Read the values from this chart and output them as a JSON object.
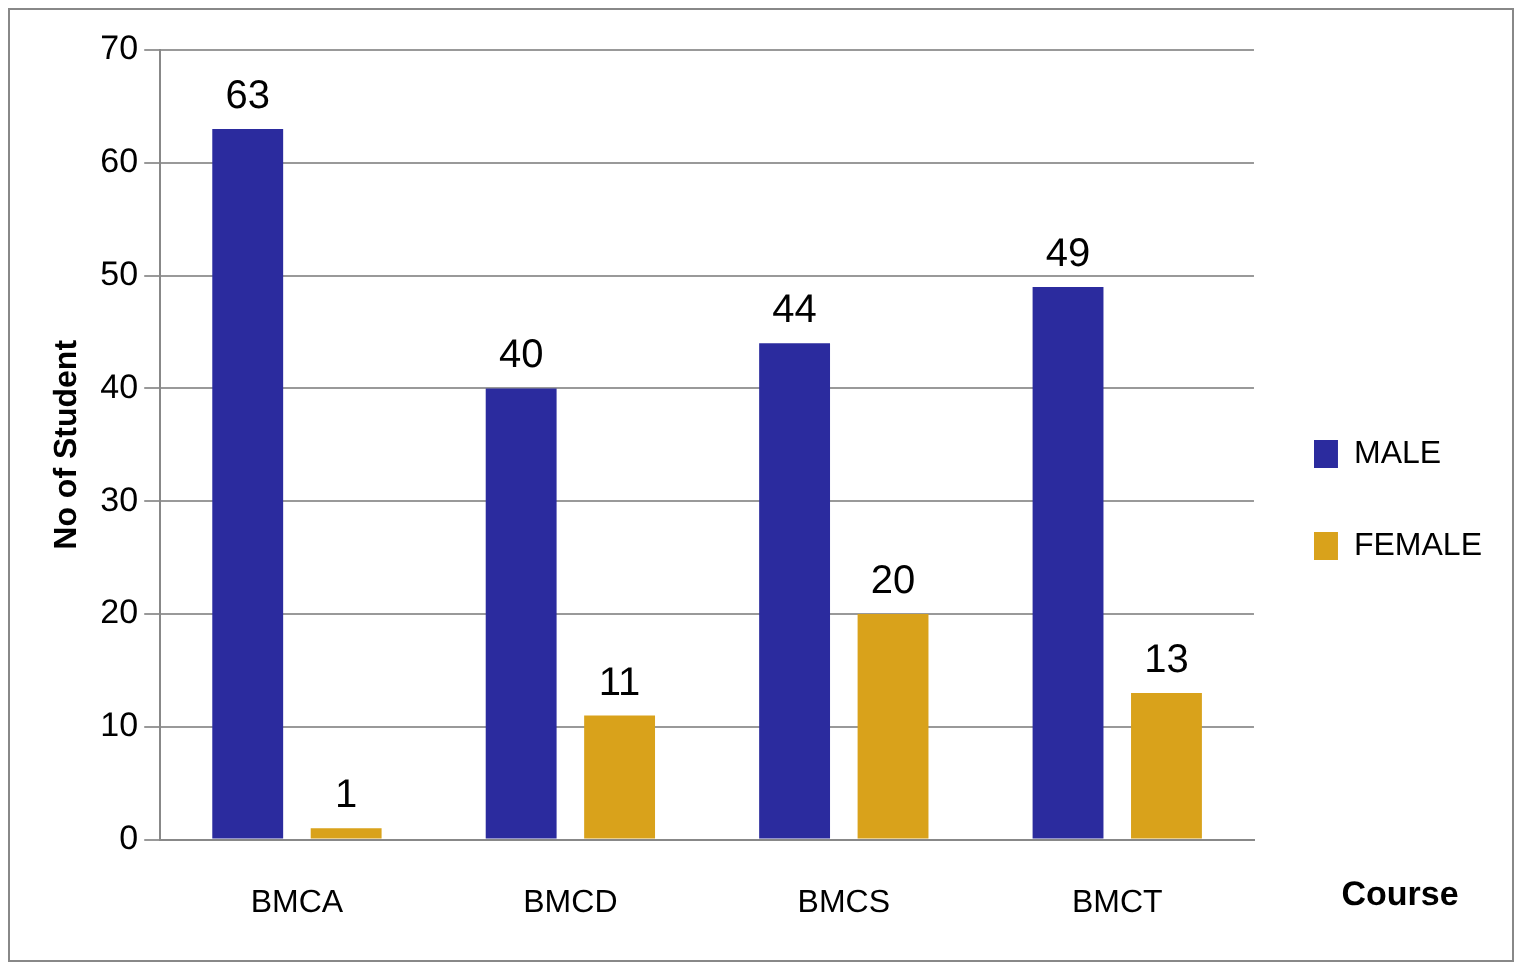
{
  "chart_data": {
    "type": "bar",
    "xlabel": "Course",
    "ylabel": "No of Student",
    "categories": [
      "BMCA",
      "BMCD",
      "BMCS",
      "BMCT"
    ],
    "series": [
      {
        "name": "MALE",
        "color": "#2b2b9e",
        "values": [
          63,
          40,
          44,
          49
        ]
      },
      {
        "name": "FEMALE",
        "color": "#d9a21b",
        "values": [
          1,
          11,
          20,
          13
        ]
      }
    ],
    "ylim": [
      0,
      70
    ],
    "yticks": [
      0,
      10,
      20,
      30,
      40,
      50,
      60,
      70
    ],
    "grid": "y",
    "legend": "right",
    "data_labels": true
  }
}
